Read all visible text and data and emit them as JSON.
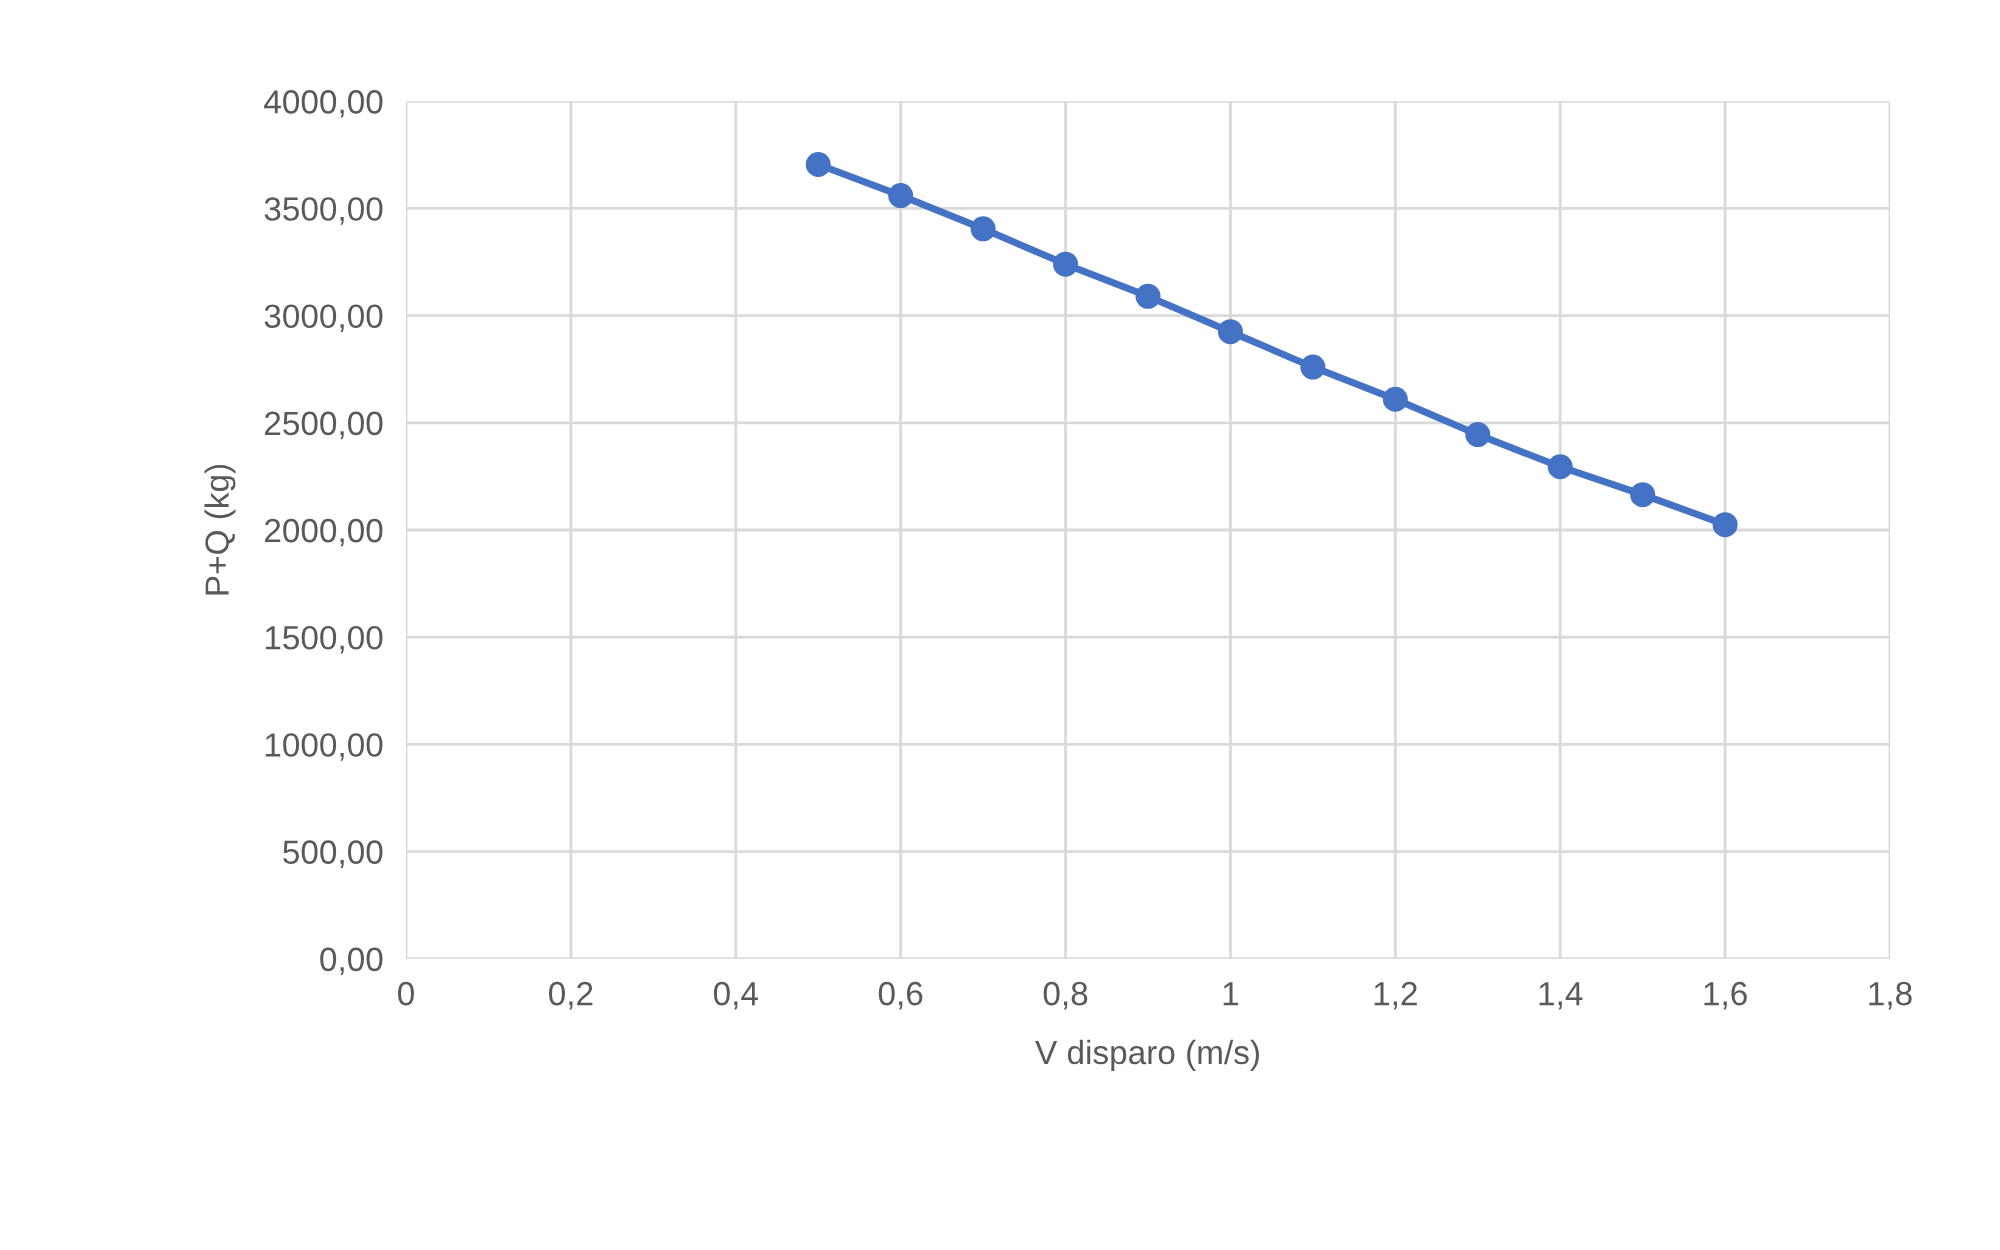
{
  "chart_data": {
    "type": "line",
    "xlabel": "V disparo (m/s)",
    "ylabel": "P+Q (kg)",
    "x": [
      0.5,
      0.6,
      0.7,
      0.8,
      0.9,
      1.0,
      1.1,
      1.2,
      1.3,
      1.4,
      1.5,
      1.6
    ],
    "series": [
      {
        "color": "#4472c4",
        "values": [
          3705,
          3560,
          3405,
          3240,
          3090,
          2925,
          2760,
          2610,
          2445,
          2295,
          2165,
          2025
        ]
      }
    ],
    "xlim": [
      0,
      1.8
    ],
    "xticks": [
      0,
      {
        "value": 0.2,
        "label": "0,2"
      },
      {
        "value": 0.4,
        "label": "0,4"
      },
      {
        "value": 0.6,
        "label": "0,6"
      },
      {
        "value": 0.8,
        "label": "0,8"
      },
      1,
      {
        "value": 1.2,
        "label": "1,2"
      },
      {
        "value": 1.4,
        "label": "1,4"
      },
      {
        "value": 1.6,
        "label": "1,6"
      },
      {
        "value": 1.8,
        "label": "1,8"
      }
    ],
    "ylim": [
      0,
      4000
    ],
    "yticks": [
      {
        "value": 0,
        "label": "0,00"
      },
      {
        "value": 500,
        "label": "500,00"
      },
      {
        "value": 1000,
        "label": "1000,00"
      },
      {
        "value": 1500,
        "label": "1500,00"
      },
      {
        "value": 2000,
        "label": "2000,00"
      },
      {
        "value": 2500,
        "label": "2500,00"
      },
      {
        "value": 3000,
        "label": "3000,00"
      },
      {
        "value": 3500,
        "label": "3500,00"
      },
      {
        "value": 4000,
        "label": "4000,00"
      }
    ],
    "grid": true,
    "marker": "circle",
    "line_style": "solid"
  }
}
